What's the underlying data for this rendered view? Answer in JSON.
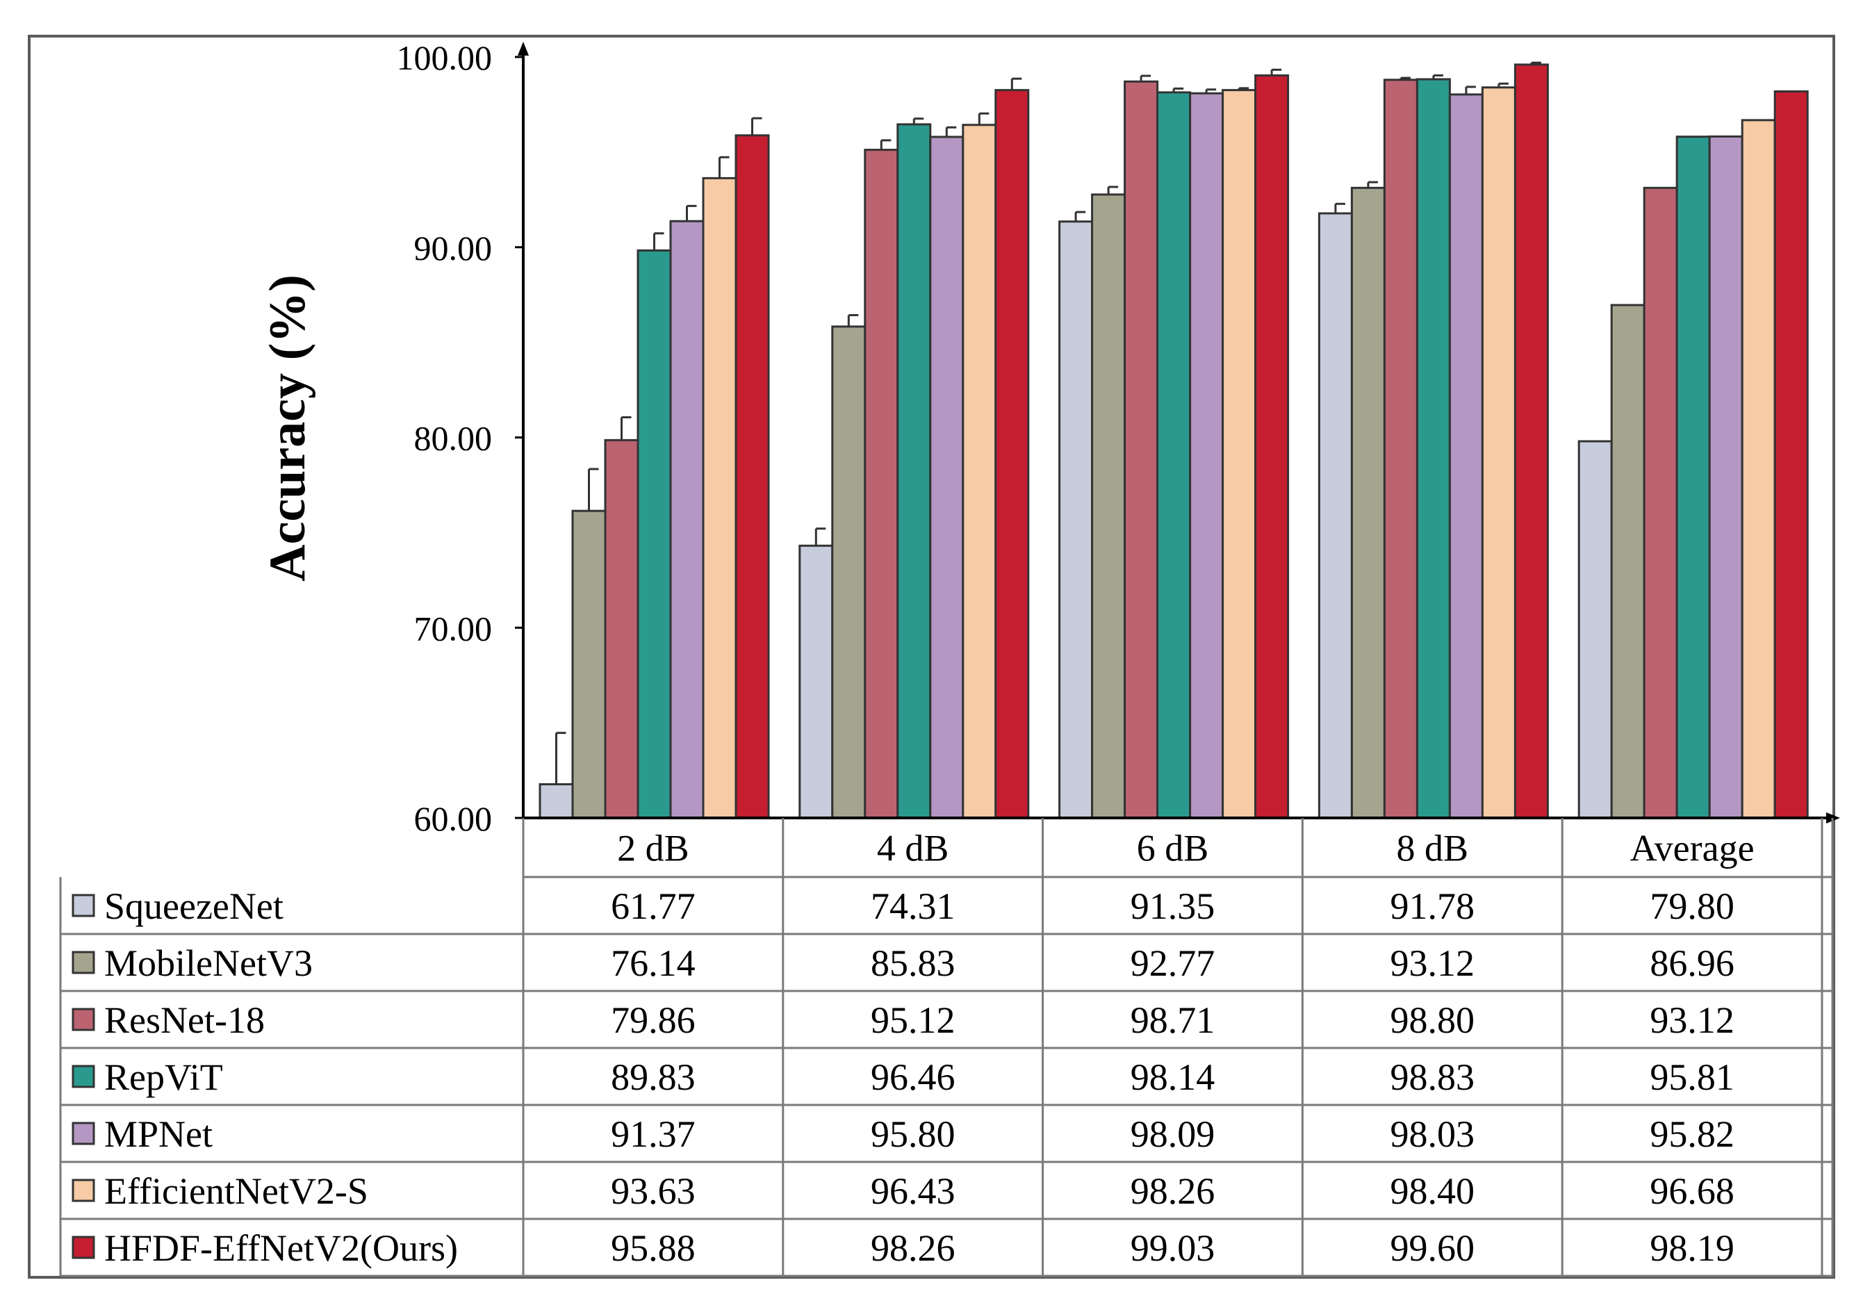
{
  "chart_data": {
    "type": "bar",
    "title": "",
    "xlabel": "",
    "ylabel": "Accuracy (%)",
    "ylim": [
      60,
      100
    ],
    "yticks": [
      "60.00",
      "70.00",
      "80.00",
      "90.00",
      "100.00"
    ],
    "categories": [
      "2 dB",
      "4 dB",
      "6 dB",
      "8 dB",
      "Average"
    ],
    "series": [
      {
        "name": "SqueezeNet",
        "color": "#c8cddd",
        "values": [
          61.77,
          74.31,
          91.35,
          91.78,
          79.8
        ],
        "labels": [
          "61.77",
          "74.31",
          "91.35",
          "91.78",
          "79.80"
        ],
        "errors": [
          2.7,
          0.9,
          0.5,
          0.5,
          0
        ]
      },
      {
        "name": "MobileNetV3",
        "color": "#a5a48e",
        "values": [
          76.14,
          85.83,
          92.77,
          93.12,
          86.96
        ],
        "labels": [
          "76.14",
          "85.83",
          "92.77",
          "93.12",
          "86.96"
        ],
        "errors": [
          2.2,
          0.6,
          0.4,
          0.3,
          0
        ]
      },
      {
        "name": "ResNet-18",
        "color": "#bc6371",
        "values": [
          79.86,
          95.12,
          98.71,
          98.8,
          93.12
        ],
        "labels": [
          "79.86",
          "95.12",
          "98.71",
          "98.80",
          "93.12"
        ],
        "errors": [
          1.2,
          0.5,
          0.3,
          0.1,
          0
        ]
      },
      {
        "name": "RepViT",
        "color": "#2b9a8e",
        "values": [
          89.83,
          96.46,
          98.14,
          98.83,
          95.81
        ],
        "labels": [
          "89.83",
          "96.46",
          "98.14",
          "98.83",
          "95.81"
        ],
        "errors": [
          0.9,
          0.3,
          0.2,
          0.2,
          0
        ]
      },
      {
        "name": "MPNet",
        "color": "#b497c3",
        "values": [
          91.37,
          95.8,
          98.09,
          98.03,
          95.82
        ],
        "labels": [
          "91.37",
          "95.80",
          "98.09",
          "98.03",
          "95.82"
        ],
        "errors": [
          0.8,
          0.5,
          0.2,
          0.4,
          0
        ]
      },
      {
        "name": "EfficientNetV2-S",
        "color": "#f6cba5",
        "values": [
          93.63,
          96.43,
          98.26,
          98.4,
          96.68
        ],
        "labels": [
          "93.63",
          "96.43",
          "98.26",
          "98.40",
          "96.68"
        ],
        "errors": [
          1.1,
          0.6,
          0.1,
          0.2,
          0
        ]
      },
      {
        "name": "HFDF-EffNetV2(Ours)",
        "color": "#c51e31",
        "values": [
          95.88,
          98.26,
          99.03,
          99.6,
          98.19
        ],
        "labels": [
          "95.88",
          "98.26",
          "99.03",
          "99.60",
          "98.19"
        ],
        "errors": [
          0.9,
          0.6,
          0.3,
          0.1,
          0
        ]
      }
    ]
  }
}
